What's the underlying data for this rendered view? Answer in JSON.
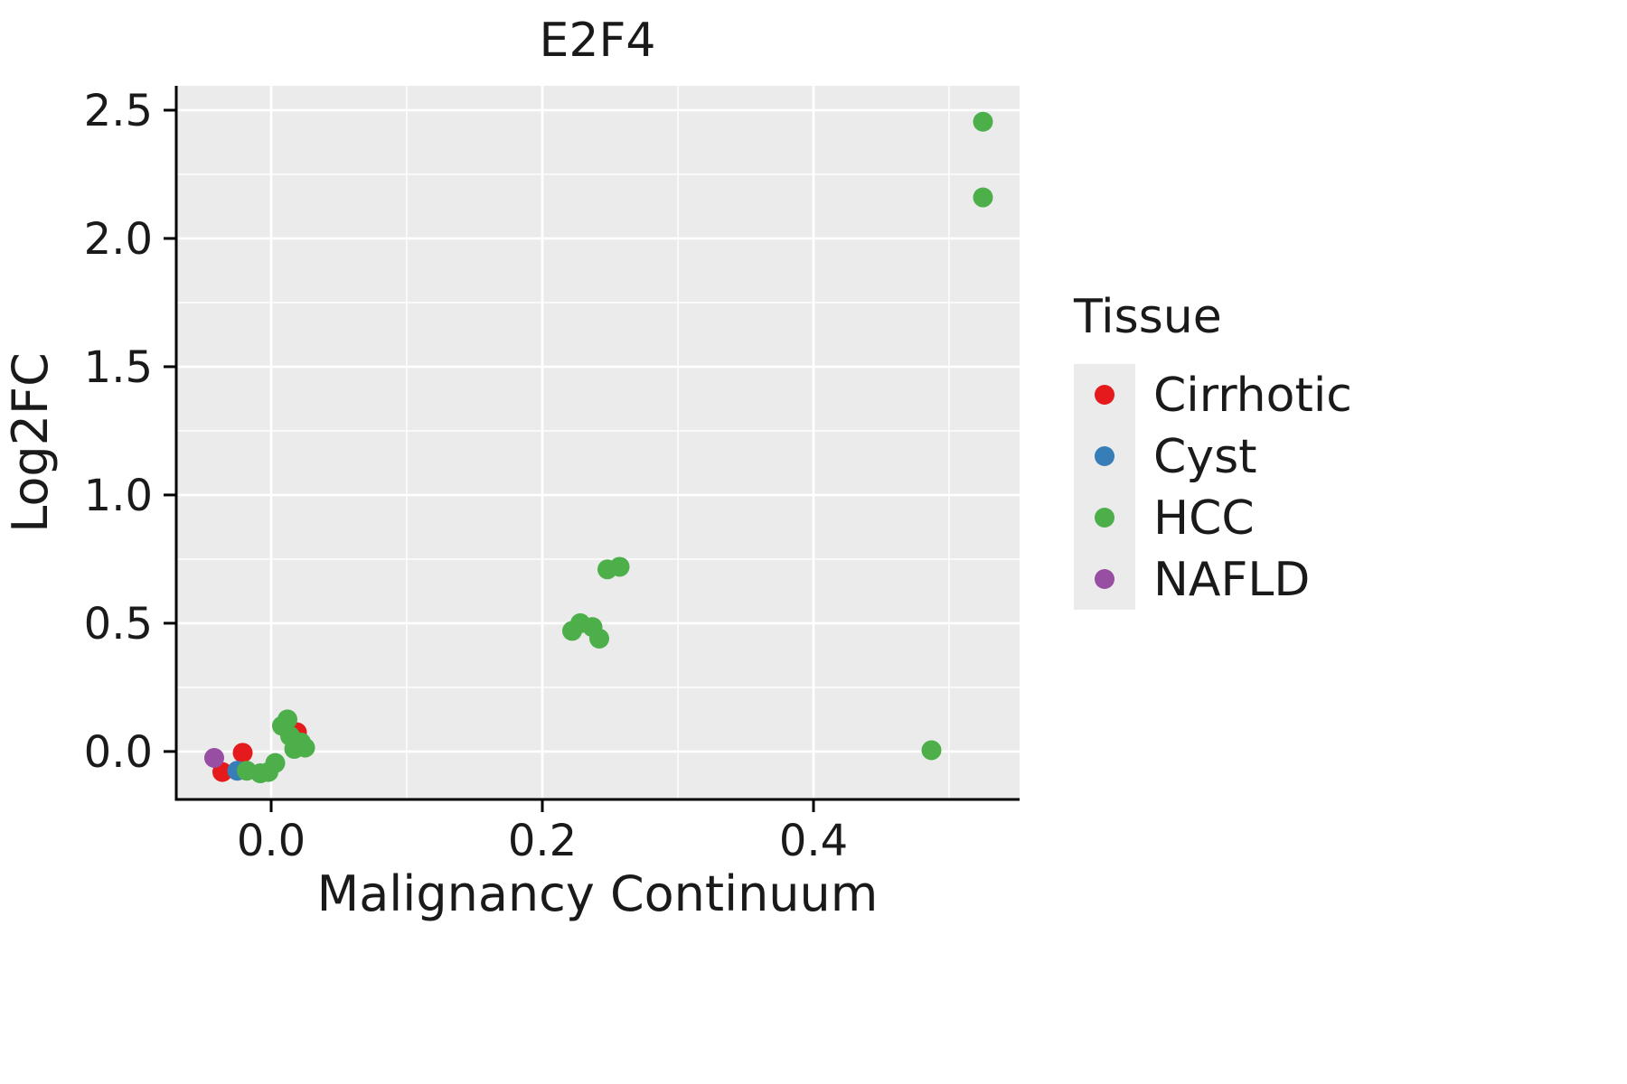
{
  "chart_data": {
    "type": "scatter",
    "title": "E2F4",
    "xlabel": "Malignancy Continuum",
    "ylabel": "Log2FC",
    "xlim": [
      -0.07,
      0.552
    ],
    "ylim": [
      -0.187,
      2.595
    ],
    "x_ticks": [
      0.0,
      0.2,
      0.4
    ],
    "x_tick_labels": [
      "0.0",
      "0.2",
      "0.4"
    ],
    "x_minor_ticks": [
      0.1,
      0.3,
      0.5
    ],
    "y_ticks": [
      0.0,
      0.5,
      1.0,
      1.5,
      2.0,
      2.5
    ],
    "y_tick_labels": [
      "0.0",
      "0.5",
      "1.0",
      "1.5",
      "2.0",
      "2.5"
    ],
    "y_minor_ticks": [
      0.25,
      0.75,
      1.25,
      1.75,
      2.25
    ],
    "grid": true,
    "panel_background": "#EBEBEB",
    "grid_color": "#FFFFFF",
    "point_radius": 11,
    "legend": {
      "title": "Tissue",
      "position": "right",
      "items": [
        {
          "label": "Cirrhotic",
          "color": "#E41A1C"
        },
        {
          "label": "Cyst",
          "color": "#377EB8"
        },
        {
          "label": "HCC",
          "color": "#4DAF4A"
        },
        {
          "label": "NAFLD",
          "color": "#984EA3"
        }
      ]
    },
    "series": [
      {
        "name": "Cirrhotic",
        "color": "#E41A1C",
        "points": [
          [
            -0.036,
            -0.08
          ],
          [
            -0.021,
            -0.005
          ],
          [
            0.019,
            0.075
          ]
        ]
      },
      {
        "name": "Cyst",
        "color": "#377EB8",
        "points": [
          [
            -0.025,
            -0.075
          ]
        ]
      },
      {
        "name": "HCC",
        "color": "#4DAF4A",
        "points": [
          [
            -0.018,
            -0.075
          ],
          [
            -0.008,
            -0.085
          ],
          [
            -0.002,
            -0.08
          ],
          [
            0.003,
            -0.045
          ],
          [
            0.008,
            0.1
          ],
          [
            0.012,
            0.125
          ],
          [
            0.014,
            0.06
          ],
          [
            0.017,
            0.01
          ],
          [
            0.022,
            0.035
          ],
          [
            0.025,
            0.015
          ],
          [
            0.222,
            0.47
          ],
          [
            0.228,
            0.5
          ],
          [
            0.237,
            0.485
          ],
          [
            0.242,
            0.44
          ],
          [
            0.248,
            0.71
          ],
          [
            0.257,
            0.72
          ],
          [
            0.487,
            0.005
          ],
          [
            0.525,
            2.455
          ],
          [
            0.525,
            2.16
          ]
        ]
      },
      {
        "name": "NAFLD",
        "color": "#984EA3",
        "points": [
          [
            -0.042,
            -0.025
          ]
        ]
      }
    ]
  }
}
